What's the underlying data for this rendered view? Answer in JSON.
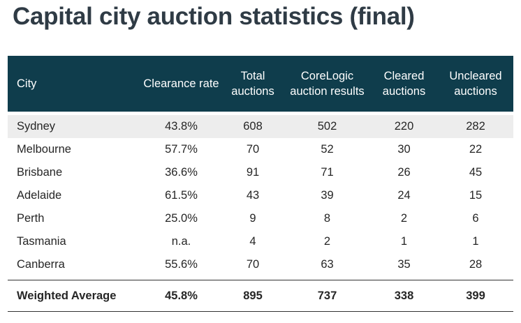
{
  "title": "Capital city auction statistics (final)",
  "table": {
    "headers": [
      "City",
      "Clearance rate",
      "Total auctions",
      "CoreLogic auction results",
      "Cleared auctions",
      "Uncleared auctions"
    ],
    "rows": [
      [
        "Sydney",
        "43.8%",
        "608",
        "502",
        "220",
        "282"
      ],
      [
        "Melbourne",
        "57.7%",
        "70",
        "52",
        "30",
        "22"
      ],
      [
        "Brisbane",
        "36.6%",
        "91",
        "71",
        "26",
        "45"
      ],
      [
        "Adelaide",
        "61.5%",
        "43",
        "39",
        "24",
        "15"
      ],
      [
        "Perth",
        "25.0%",
        "9",
        "8",
        "2",
        "6"
      ],
      [
        "Tasmania",
        "n.a.",
        "4",
        "2",
        "1",
        "1"
      ],
      [
        "Canberra",
        "55.6%",
        "70",
        "63",
        "35",
        "28"
      ]
    ],
    "footer": [
      "Weighted Average",
      "45.8%",
      "895",
      "737",
      "338",
      "399"
    ]
  },
  "colors": {
    "header_bg": "#0f3d4c",
    "band": "#ededed",
    "title": "#2f3b45"
  }
}
